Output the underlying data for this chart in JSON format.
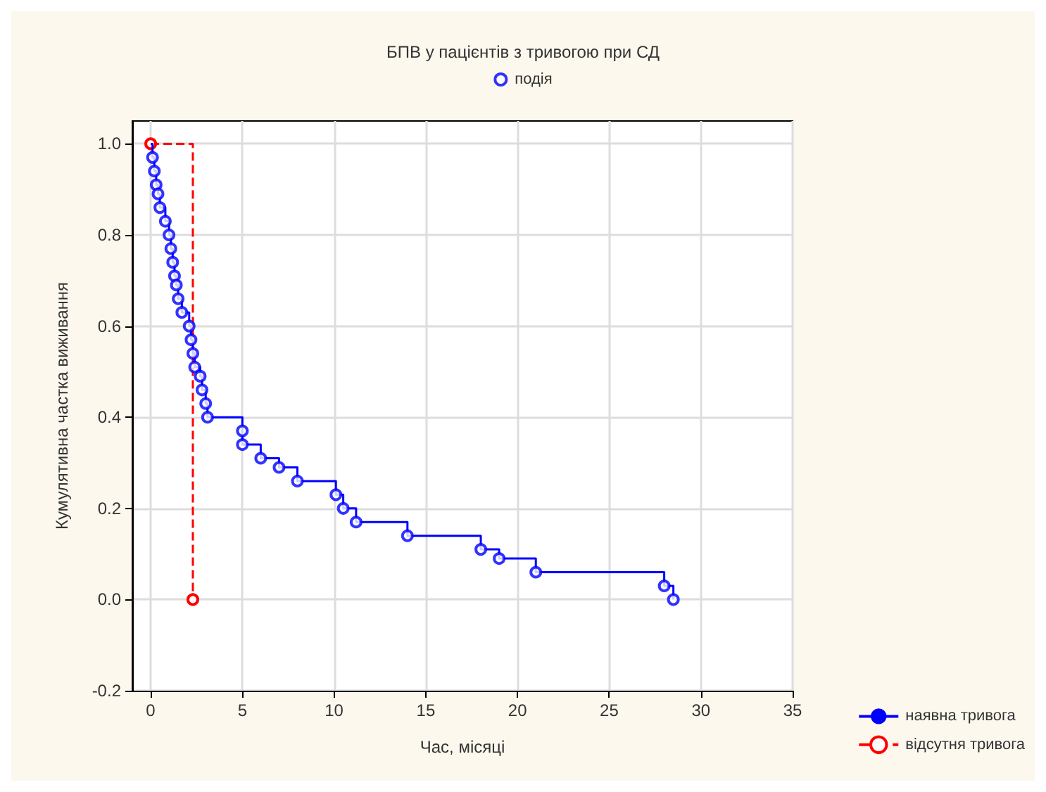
{
  "chart_data": {
    "type": "step",
    "title": "БПВ у пацієнтів з тривогою при СД",
    "xlabel": "Час, місяці",
    "ylabel": "Кумулятивна частка виживання",
    "xlim": [
      -1,
      35
    ],
    "xticks": [
      0,
      5,
      10,
      15,
      20,
      25,
      30,
      35
    ],
    "ylim": [
      -0.2,
      1.05
    ],
    "yticks": [
      {
        "value": -0.2,
        "label": "-0.2"
      },
      {
        "value": 0,
        "label": "0.0"
      },
      {
        "value": 0.2,
        "label": "0.2"
      },
      {
        "value": 0.4,
        "label": "0.4"
      },
      {
        "value": 0.6,
        "label": "0.6"
      },
      {
        "value": 0.8,
        "label": "0.8"
      },
      {
        "value": 1,
        "label": "1.0"
      }
    ],
    "grid": true,
    "legend": "bottom right",
    "series": [
      {
        "name": "подія",
        "type": "scatter",
        "marker": "circle",
        "color": "#0000ff",
        "x": [
          0.1,
          0.2,
          0.3,
          0.4,
          0.5,
          0.8,
          1.0,
          1.1,
          1.2,
          1.3,
          1.4,
          1.5,
          1.7,
          2.1,
          2.2,
          2.3,
          2.4,
          2.7,
          2.8,
          3.0,
          3.1,
          5.0,
          5.0,
          6.0,
          7.0,
          8.0,
          10.1,
          10.5,
          11.2,
          14.0,
          18.0,
          19.0,
          21.0,
          28.0,
          28.5
        ],
        "values": [
          0.97,
          0.94,
          0.91,
          0.89,
          0.86,
          0.83,
          0.8,
          0.77,
          0.74,
          0.71,
          0.69,
          0.66,
          0.63,
          0.6,
          0.57,
          0.54,
          0.51,
          0.49,
          0.46,
          0.43,
          0.4,
          0.37,
          0.34,
          0.31,
          0.29,
          0.26,
          0.23,
          0.2,
          0.17,
          0.14,
          0.11,
          0.09,
          0.06,
          0.03,
          0.0
        ]
      },
      {
        "name": "наявна тривога",
        "color": "#0000ff",
        "line_style": "solid",
        "x": [
          0,
          0.1,
          0.2,
          0.3,
          0.4,
          0.5,
          0.8,
          1.0,
          1.1,
          1.2,
          1.3,
          1.4,
          1.5,
          1.7,
          2.1,
          2.2,
          2.3,
          2.4,
          2.7,
          2.8,
          3.0,
          3.1,
          5.0,
          5.0,
          6.0,
          7.0,
          8.0,
          10.1,
          10.5,
          11.2,
          14.0,
          18.0,
          19.0,
          21.0,
          28.0,
          28.5
        ],
        "values": [
          1.0,
          0.97,
          0.94,
          0.91,
          0.89,
          0.86,
          0.83,
          0.8,
          0.77,
          0.74,
          0.71,
          0.69,
          0.66,
          0.63,
          0.6,
          0.57,
          0.54,
          0.51,
          0.49,
          0.46,
          0.43,
          0.4,
          0.37,
          0.34,
          0.31,
          0.29,
          0.26,
          0.23,
          0.2,
          0.17,
          0.14,
          0.11,
          0.09,
          0.06,
          0.03,
          0.0
        ]
      },
      {
        "name": "відсутня тривога",
        "color": "#ff0000",
        "line_style": "dashed",
        "marker": "circle",
        "x": [
          0,
          2.3
        ],
        "values": [
          1.0,
          0.0
        ]
      }
    ]
  }
}
